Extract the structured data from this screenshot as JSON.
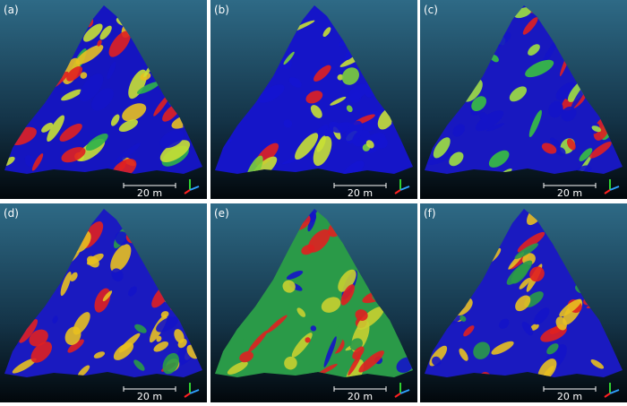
{
  "panels": [
    {
      "label": "(a)",
      "scale": "20 m"
    },
    {
      "label": "(b)",
      "scale": "20 m"
    },
    {
      "label": "(c)",
      "scale": "20 m"
    },
    {
      "label": "(d)",
      "scale": "20 m"
    },
    {
      "label": "(e)",
      "scale": "20 m"
    },
    {
      "label": "(f)",
      "scale": "20 m"
    }
  ]
}
